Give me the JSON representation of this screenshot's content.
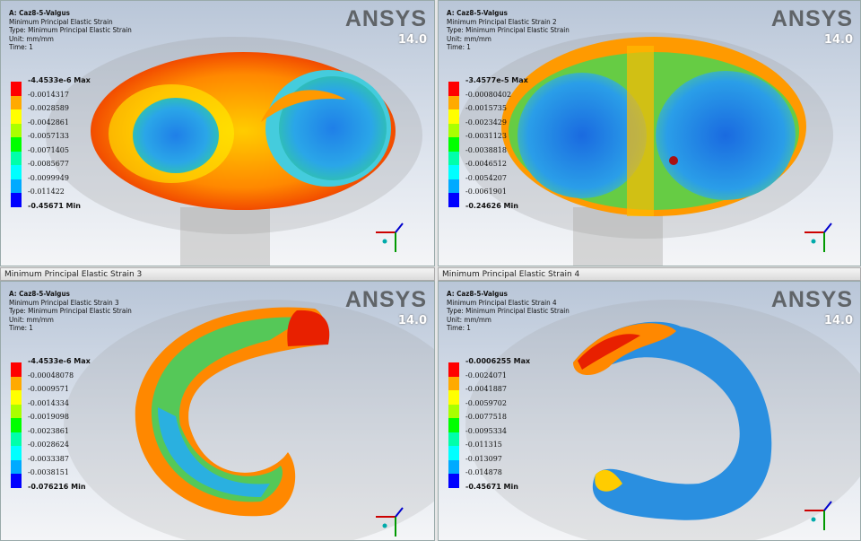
{
  "panels": [
    {
      "logo": "ANSYS",
      "version": "14.0",
      "info": [
        "A: Caz8-5-Valgus",
        "Minimum Principal Elastic Strain",
        "Type: Minimum Principal Elastic Strain",
        "Unit: mm/mm",
        "Time: 1"
      ],
      "legend": [
        "-4.4533e-6 Max",
        "-0.0014317",
        "-0.0028589",
        "-0.0042861",
        "-0.0057133",
        "-0.0071405",
        "-0.0085677",
        "-0.0099949",
        "-0.011422",
        "-0.45671 Min"
      ]
    },
    {
      "logo": "ANSYS",
      "version": "14.0",
      "info": [
        "A: Caz8-5-Valgus",
        "Minimum Principal Elastic Strain 2",
        "Type: Minimum Principal Elastic Strain",
        "Unit: mm/mm",
        "Time: 1"
      ],
      "legend": [
        "-3.4577e-5 Max",
        "-0.00080402",
        "-0.0015735",
        "-0.0023429",
        "-0.0031123",
        "-0.0038818",
        "-0.0046512",
        "-0.0054207",
        "-0.0061901",
        "-0.24626 Min"
      ]
    },
    {
      "header": "Minimum Principal Elastic Strain 3",
      "logo": "ANSYS",
      "version": "14.0",
      "info": [
        "A: Caz8-5-Valgus",
        "Minimum Principal Elastic Strain 3",
        "Type: Minimum Principal Elastic Strain",
        "Unit: mm/mm",
        "Time: 1"
      ],
      "legend": [
        "-4.4533e-6 Max",
        "-0.00048078",
        "-0.0009571",
        "-0.0014334",
        "-0.0019098",
        "-0.0023861",
        "-0.0028624",
        "-0.0033387",
        "-0.0038151",
        "-0.076216 Min"
      ]
    },
    {
      "header": "Minimum Principal Elastic Strain 4",
      "logo": "ANSYS",
      "version": "14.0",
      "info": [
        "A: Caz8-5-Valgus",
        "Minimum Principal Elastic Strain 4",
        "Type: Minimum Principal Elastic Strain",
        "Unit: mm/mm",
        "Time: 1"
      ],
      "legend": [
        "-0.0006255 Max",
        "-0.0024071",
        "-0.0041887",
        "-0.0059702",
        "-0.0077518",
        "-0.0095334",
        "-0.011315",
        "-0.013097",
        "-0.014878",
        "-0.45671 Min"
      ]
    }
  ]
}
